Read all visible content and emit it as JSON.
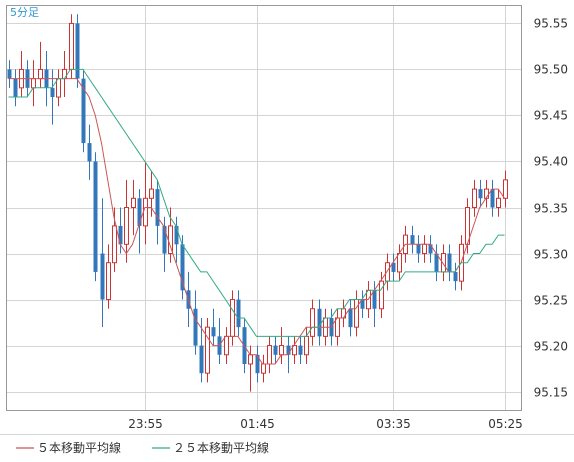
{
  "timeframe_label": "5分足",
  "legend": {
    "ma5_label": "５本移動平均線",
    "ma25_label": "２５本移動平均線"
  },
  "colors": {
    "bull_candle": "#cc3333",
    "bear_candle": "#3377bb",
    "ma5": "#cc5555",
    "ma25": "#33aa88",
    "grid": "#d4d4d4",
    "frame": "#999999"
  },
  "chart_data": {
    "type": "candlestick",
    "title": "",
    "xlabel": "",
    "ylabel": "",
    "ylim": [
      95.13,
      95.57
    ],
    "yticks": [
      "95.55",
      "95.50",
      "95.45",
      "95.40",
      "95.35",
      "95.30",
      "95.25",
      "95.20",
      "95.15"
    ],
    "xticks": [
      "23:55",
      "01:45",
      "03:35",
      "05:25"
    ],
    "grid": true,
    "y_axis_position": "right",
    "series": [
      {
        "name": "５本移動平均線",
        "values": [
          95.49,
          95.49,
          95.49,
          95.49,
          95.49,
          95.49,
          95.49,
          95.49,
          95.49,
          95.49,
          95.49,
          95.49,
          95.48,
          95.47,
          95.45,
          95.42,
          95.38,
          95.34,
          95.31,
          95.3,
          95.31,
          95.33,
          95.35,
          95.35,
          95.34,
          95.33,
          95.31,
          95.29,
          95.27,
          95.25,
          95.23,
          95.22,
          95.21,
          95.2,
          95.2,
          95.21,
          95.21,
          95.21,
          95.2,
          95.19,
          95.19,
          95.18,
          95.18,
          95.18,
          95.19,
          95.19,
          95.2,
          95.21,
          95.22,
          95.22,
          95.22,
          95.22,
          95.22,
          95.23,
          95.23,
          95.24,
          95.24,
          95.25,
          95.25,
          95.26,
          95.27,
          95.28,
          95.29,
          95.3,
          95.31,
          95.31,
          95.31,
          95.31,
          95.31,
          95.3,
          95.29,
          95.28,
          95.28,
          95.29,
          95.31,
          95.33,
          95.35,
          95.36,
          95.37,
          95.37,
          95.36
        ]
      },
      {
        "name": "２５本移動平均線",
        "values": [
          95.47,
          95.47,
          95.47,
          95.47,
          95.48,
          95.48,
          95.48,
          95.48,
          95.49,
          95.49,
          95.5,
          95.5,
          95.5,
          95.49,
          95.48,
          95.47,
          95.46,
          95.45,
          95.44,
          95.43,
          95.42,
          95.41,
          95.4,
          95.39,
          95.38,
          95.36,
          95.34,
          95.33,
          95.31,
          95.3,
          95.29,
          95.28,
          95.28,
          95.27,
          95.26,
          95.25,
          95.24,
          95.23,
          95.23,
          95.22,
          95.21,
          95.21,
          95.21,
          95.21,
          95.21,
          95.21,
          95.21,
          95.21,
          95.21,
          95.22,
          95.22,
          95.23,
          95.23,
          95.24,
          95.24,
          95.25,
          95.25,
          95.25,
          95.26,
          95.26,
          95.26,
          95.27,
          95.27,
          95.27,
          95.28,
          95.28,
          95.28,
          95.28,
          95.28,
          95.28,
          95.28,
          95.28,
          95.28,
          95.29,
          95.29,
          95.3,
          95.3,
          95.31,
          95.31,
          95.32,
          95.32
        ]
      }
    ],
    "candles": [
      [
        95.5,
        95.49,
        95.51,
        95.48
      ],
      [
        95.49,
        95.47,
        95.5,
        95.46
      ],
      [
        95.48,
        95.5,
        95.52,
        95.47
      ],
      [
        95.5,
        95.48,
        95.51,
        95.47
      ],
      [
        95.48,
        95.49,
        95.51,
        95.46
      ],
      [
        95.49,
        95.5,
        95.53,
        95.48
      ],
      [
        95.5,
        95.48,
        95.52,
        95.46
      ],
      [
        95.48,
        95.47,
        95.5,
        95.44
      ],
      [
        95.47,
        95.49,
        95.5,
        95.46
      ],
      [
        95.49,
        95.5,
        95.52,
        95.47
      ],
      [
        95.5,
        95.55,
        95.56,
        95.49
      ],
      [
        95.55,
        95.49,
        95.56,
        95.48
      ],
      [
        95.49,
        95.42,
        95.5,
        95.41
      ],
      [
        95.42,
        95.4,
        95.44,
        95.38
      ],
      [
        95.4,
        95.28,
        95.41,
        95.27
      ],
      [
        95.3,
        95.25,
        95.36,
        95.22
      ],
      [
        95.25,
        95.29,
        95.31,
        95.24
      ],
      [
        95.29,
        95.33,
        95.35,
        95.28
      ],
      [
        95.33,
        95.31,
        95.35,
        95.3
      ],
      [
        95.31,
        95.35,
        95.38,
        95.29
      ],
      [
        95.35,
        95.36,
        95.38,
        95.32
      ],
      [
        95.36,
        95.33,
        95.37,
        95.3
      ],
      [
        95.33,
        95.36,
        95.4,
        95.31
      ],
      [
        95.36,
        95.37,
        95.39,
        95.34
      ],
      [
        95.37,
        95.33,
        95.38,
        95.31
      ],
      [
        95.33,
        95.3,
        95.34,
        95.28
      ],
      [
        95.3,
        95.33,
        95.35,
        95.29
      ],
      [
        95.33,
        95.31,
        95.34,
        95.29
      ],
      [
        95.31,
        95.26,
        95.32,
        95.25
      ],
      [
        95.26,
        95.24,
        95.28,
        95.22
      ],
      [
        95.24,
        95.2,
        95.26,
        95.19
      ],
      [
        95.2,
        95.17,
        95.23,
        95.16
      ],
      [
        95.17,
        95.22,
        95.23,
        95.16
      ],
      [
        95.22,
        95.21,
        95.24,
        95.2
      ],
      [
        95.21,
        95.19,
        95.23,
        95.18
      ],
      [
        95.19,
        95.21,
        95.22,
        95.18
      ],
      [
        95.21,
        95.25,
        95.26,
        95.2
      ],
      [
        95.25,
        95.22,
        95.26,
        95.21
      ],
      [
        95.22,
        95.18,
        95.23,
        95.17
      ],
      [
        95.18,
        95.19,
        95.2,
        95.15
      ],
      [
        95.19,
        95.17,
        95.2,
        95.16
      ],
      [
        95.17,
        95.18,
        95.19,
        95.16
      ],
      [
        95.18,
        95.2,
        95.21,
        95.17
      ],
      [
        95.2,
        95.19,
        95.21,
        95.18
      ],
      [
        95.19,
        95.2,
        95.22,
        95.18
      ],
      [
        95.2,
        95.19,
        95.21,
        95.17
      ],
      [
        95.19,
        95.2,
        95.21,
        95.18
      ],
      [
        95.2,
        95.19,
        95.21,
        95.18
      ],
      [
        95.19,
        95.21,
        95.22,
        95.18
      ],
      [
        95.21,
        95.24,
        95.25,
        95.2
      ],
      [
        95.24,
        95.21,
        95.25,
        95.2
      ],
      [
        95.21,
        95.23,
        95.24,
        95.2
      ],
      [
        95.23,
        95.21,
        95.24,
        95.2
      ],
      [
        95.21,
        95.23,
        95.24,
        95.2
      ],
      [
        95.23,
        95.24,
        95.25,
        95.22
      ],
      [
        95.24,
        95.22,
        95.25,
        95.21
      ],
      [
        95.22,
        95.25,
        95.26,
        95.21
      ],
      [
        95.25,
        95.24,
        95.26,
        95.23
      ],
      [
        95.24,
        95.26,
        95.27,
        95.23
      ],
      [
        95.26,
        95.24,
        95.27,
        95.22
      ],
      [
        95.24,
        95.27,
        95.28,
        95.23
      ],
      [
        95.27,
        95.29,
        95.3,
        95.26
      ],
      [
        95.29,
        95.28,
        95.3,
        95.27
      ],
      [
        95.28,
        95.3,
        95.31,
        95.27
      ],
      [
        95.3,
        95.32,
        95.33,
        95.29
      ],
      [
        95.32,
        95.31,
        95.33,
        95.3
      ],
      [
        95.31,
        95.3,
        95.32,
        95.29
      ],
      [
        95.3,
        95.31,
        95.32,
        95.29
      ],
      [
        95.31,
        95.3,
        95.32,
        95.29
      ],
      [
        95.3,
        95.28,
        95.31,
        95.27
      ],
      [
        95.28,
        95.3,
        95.31,
        95.27
      ],
      [
        95.3,
        95.28,
        95.31,
        95.27
      ],
      [
        95.28,
        95.27,
        95.29,
        95.26
      ],
      [
        95.27,
        95.31,
        95.32,
        95.26
      ],
      [
        95.31,
        95.35,
        95.36,
        95.3
      ],
      [
        95.35,
        95.37,
        95.38,
        95.34
      ],
      [
        95.37,
        95.36,
        95.38,
        95.35
      ],
      [
        95.36,
        95.37,
        95.38,
        95.35
      ],
      [
        95.37,
        95.35,
        95.38,
        95.34
      ],
      [
        95.35,
        95.36,
        95.37,
        95.34
      ],
      [
        95.36,
        95.38,
        95.39,
        95.35
      ]
    ]
  }
}
